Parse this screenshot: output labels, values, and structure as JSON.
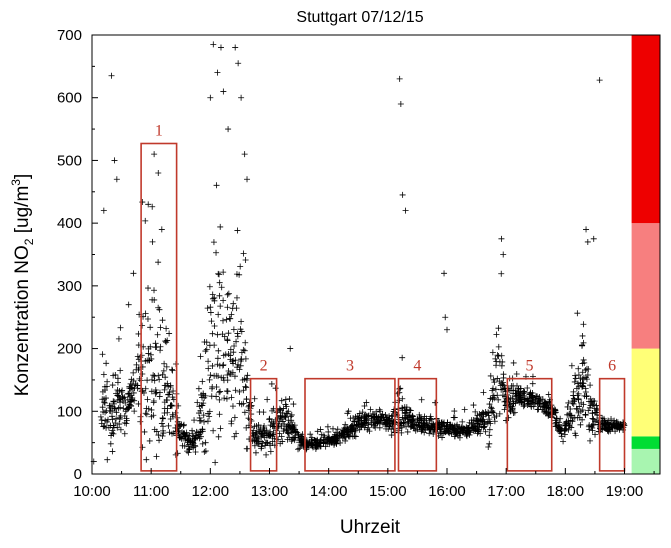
{
  "chart_data": {
    "type": "scatter",
    "title": "Stuttgart 07/12/15",
    "xlabel": "Uhrzeit",
    "ylabel_main": "Konzentration NO",
    "ylabel_sub": "2",
    "ylabel_unit": " [ug/m",
    "ylabel_sup": "3",
    "ylabel_end": "]",
    "xlim": [
      10.0,
      19.6
    ],
    "ylim": [
      0,
      700
    ],
    "x_ticks": [
      {
        "value": 10,
        "label": "10:00"
      },
      {
        "value": 11,
        "label": "11:00"
      },
      {
        "value": 12,
        "label": "12:00"
      },
      {
        "value": 13,
        "label": "13:00"
      },
      {
        "value": 14,
        "label": "14:00"
      },
      {
        "value": 15,
        "label": "15:00"
      },
      {
        "value": 16,
        "label": "16:00"
      },
      {
        "value": 17,
        "label": "17:00"
      },
      {
        "value": 18,
        "label": "18:00"
      },
      {
        "value": 19,
        "label": "19:00"
      }
    ],
    "y_ticks": [
      0,
      100,
      200,
      300,
      400,
      500,
      600,
      700
    ],
    "marker": "+",
    "marker_color": "#000000",
    "series_profile": [
      [
        10.15,
        95,
        35
      ],
      [
        10.25,
        105,
        45
      ],
      [
        10.35,
        90,
        40
      ],
      [
        10.45,
        110,
        35
      ],
      [
        10.55,
        100,
        25
      ],
      [
        10.65,
        115,
        20
      ],
      [
        10.75,
        150,
        25
      ],
      [
        10.85,
        170,
        70
      ],
      [
        10.95,
        160,
        85
      ],
      [
        11.05,
        150,
        80
      ],
      [
        11.15,
        160,
        90
      ],
      [
        11.25,
        130,
        60
      ],
      [
        11.35,
        100,
        40
      ],
      [
        11.45,
        75,
        25
      ],
      [
        11.55,
        55,
        15
      ],
      [
        11.65,
        45,
        10
      ],
      [
        11.75,
        55,
        15
      ],
      [
        11.85,
        85,
        35
      ],
      [
        11.95,
        160,
        80
      ],
      [
        12.05,
        220,
        110
      ],
      [
        12.15,
        210,
        110
      ],
      [
        12.25,
        180,
        90
      ],
      [
        12.35,
        170,
        80
      ],
      [
        12.45,
        190,
        90
      ],
      [
        12.55,
        170,
        70
      ],
      [
        12.65,
        110,
        40
      ],
      [
        12.75,
        60,
        15
      ],
      [
        12.85,
        55,
        12
      ],
      [
        12.95,
        65,
        20
      ],
      [
        13.05,
        70,
        20
      ],
      [
        13.15,
        75,
        20
      ],
      [
        13.25,
        90,
        25
      ],
      [
        13.35,
        80,
        20
      ],
      [
        13.5,
        50,
        8
      ],
      [
        13.7,
        48,
        5
      ],
      [
        13.9,
        50,
        6
      ],
      [
        14.1,
        55,
        7
      ],
      [
        14.3,
        65,
        8
      ],
      [
        14.5,
        80,
        10
      ],
      [
        14.7,
        88,
        10
      ],
      [
        14.9,
        85,
        10
      ],
      [
        15.05,
        82,
        10
      ],
      [
        15.2,
        100,
        30
      ],
      [
        15.35,
        85,
        15
      ],
      [
        15.55,
        80,
        10
      ],
      [
        15.75,
        78,
        10
      ],
      [
        15.95,
        72,
        8
      ],
      [
        16.15,
        70,
        8
      ],
      [
        16.35,
        72,
        8
      ],
      [
        16.55,
        80,
        12
      ],
      [
        16.7,
        90,
        25
      ],
      [
        16.85,
        160,
        70
      ],
      [
        17.0,
        110,
        20
      ],
      [
        17.2,
        125,
        12
      ],
      [
        17.4,
        120,
        10
      ],
      [
        17.6,
        112,
        8
      ],
      [
        17.8,
        100,
        10
      ],
      [
        17.95,
        60,
        5
      ],
      [
        18.3,
        150,
        50
      ],
      [
        18.45,
        100,
        30
      ],
      [
        18.6,
        78,
        8
      ],
      [
        18.8,
        75,
        4
      ],
      [
        19.0,
        78,
        4
      ]
    ],
    "outliers": [
      [
        10.03,
        20
      ],
      [
        10.2,
        420
      ],
      [
        10.33,
        635
      ],
      [
        10.38,
        500
      ],
      [
        10.42,
        470
      ],
      [
        10.62,
        270
      ],
      [
        10.7,
        320
      ],
      [
        10.95,
        430
      ],
      [
        11.05,
        510
      ],
      [
        11.12,
        480
      ],
      [
        11.18,
        390
      ],
      [
        12.0,
        600
      ],
      [
        12.05,
        685
      ],
      [
        12.12,
        640
      ],
      [
        12.18,
        680
      ],
      [
        12.22,
        610
      ],
      [
        12.3,
        550
      ],
      [
        12.42,
        680
      ],
      [
        12.47,
        655
      ],
      [
        12.52,
        600
      ],
      [
        12.58,
        510
      ],
      [
        12.62,
        470
      ],
      [
        13.35,
        200
      ],
      [
        15.2,
        630
      ],
      [
        15.22,
        590
      ],
      [
        15.25,
        445
      ],
      [
        15.3,
        420
      ],
      [
        15.95,
        320
      ],
      [
        15.97,
        250
      ],
      [
        16.0,
        230
      ],
      [
        16.92,
        375
      ],
      [
        16.95,
        350
      ],
      [
        18.35,
        390
      ],
      [
        18.38,
        370
      ],
      [
        18.48,
        375
      ],
      [
        18.58,
        628
      ]
    ],
    "boxes": [
      {
        "label": "1",
        "x0": 10.83,
        "x1": 11.43,
        "y0": 5,
        "y1": 527
      },
      {
        "label": "2",
        "x0": 12.68,
        "x1": 13.12,
        "y0": 5,
        "y1": 152
      },
      {
        "label": "3",
        "x0": 13.6,
        "x1": 15.12,
        "y0": 5,
        "y1": 152
      },
      {
        "label": "4",
        "x0": 15.18,
        "x1": 15.82,
        "y0": 5,
        "y1": 152
      },
      {
        "label": "5",
        "x0": 17.02,
        "x1": 17.77,
        "y0": 5,
        "y1": 152
      },
      {
        "label": "6",
        "x0": 18.58,
        "x1": 19.0,
        "y0": 5,
        "y1": 152
      }
    ],
    "box_color": "#c0392b",
    "color_bands": [
      {
        "y0": 0,
        "y1": 40,
        "color": "#a8f5b0"
      },
      {
        "y0": 40,
        "y1": 60,
        "color": "#00dd33"
      },
      {
        "y0": 60,
        "y1": 200,
        "color": "#ffff77"
      },
      {
        "y0": 200,
        "y1": 400,
        "color": "#f77f7f"
      },
      {
        "y0": 400,
        "y1": 700,
        "color": "#ee0000"
      }
    ]
  }
}
